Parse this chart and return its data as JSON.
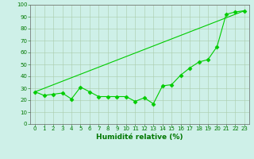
{
  "xlabel": "Humidité relative (%)",
  "x_data": [
    0,
    1,
    2,
    3,
    4,
    5,
    6,
    7,
    8,
    9,
    10,
    11,
    12,
    13,
    14,
    15,
    16,
    17,
    18,
    19,
    20,
    21,
    22,
    23
  ],
  "y_markers": [
    27,
    24,
    25,
    26,
    21,
    31,
    27,
    23,
    23,
    23,
    23,
    19,
    22,
    17,
    32,
    33,
    41,
    47,
    52,
    54,
    65,
    92,
    94,
    95
  ],
  "line_color": "#00cc00",
  "marker_color": "#00aa00",
  "marker_style": "D",
  "marker_size": 2.5,
  "ylim": [
    0,
    100
  ],
  "xlim_min": -0.5,
  "xlim_max": 23.5,
  "yticks": [
    0,
    10,
    20,
    30,
    40,
    50,
    60,
    70,
    80,
    90,
    100
  ],
  "xticks": [
    0,
    1,
    2,
    3,
    4,
    5,
    6,
    7,
    8,
    9,
    10,
    11,
    12,
    13,
    14,
    15,
    16,
    17,
    18,
    19,
    20,
    21,
    22,
    23
  ],
  "bg_color": "#cef0e8",
  "grid_color": "#aaccaa",
  "tick_labelsize": 5.0,
  "xlabel_fontsize": 6.5,
  "xlabel_color": "#007700",
  "tick_color": "#007700",
  "line_width": 0.8
}
